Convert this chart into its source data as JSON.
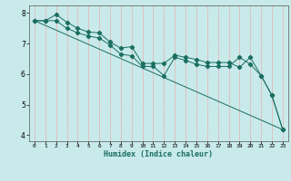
{
  "xlabel": "Humidex (Indice chaleur)",
  "bg_color": "#c8eaea",
  "grid_color_v": "#e8b0b0",
  "grid_color_h": "#c8e8e8",
  "line_color": "#1a6e60",
  "xlim": [
    -0.5,
    23.5
  ],
  "ylim": [
    3.8,
    8.25
  ],
  "yticks": [
    4,
    5,
    6,
    7,
    8
  ],
  "xticks": [
    0,
    1,
    2,
    3,
    4,
    5,
    6,
    7,
    8,
    9,
    10,
    11,
    12,
    13,
    14,
    15,
    16,
    17,
    18,
    19,
    20,
    21,
    22,
    23
  ],
  "series1_x": [
    0,
    1,
    2,
    3,
    4,
    5,
    6,
    7,
    8,
    9,
    10,
    11,
    12,
    13,
    14,
    15,
    16,
    17,
    18,
    19,
    20,
    21,
    22,
    23
  ],
  "series1_y": [
    7.75,
    7.75,
    7.95,
    7.7,
    7.5,
    7.38,
    7.35,
    7.05,
    6.85,
    6.9,
    6.35,
    6.35,
    6.35,
    6.62,
    6.55,
    6.48,
    6.38,
    6.38,
    6.38,
    6.22,
    6.55,
    5.95,
    5.3,
    4.18
  ],
  "series2_x": [
    0,
    1,
    2,
    3,
    4,
    5,
    6,
    7,
    8,
    9,
    10,
    11,
    12,
    13,
    14,
    15,
    16,
    17,
    18,
    19,
    20,
    21,
    22,
    23
  ],
  "series2_y": [
    7.75,
    7.75,
    7.75,
    7.5,
    7.35,
    7.25,
    7.18,
    6.95,
    6.65,
    6.6,
    6.25,
    6.25,
    5.95,
    6.55,
    6.45,
    6.32,
    6.25,
    6.25,
    6.25,
    6.55,
    6.32,
    5.95,
    5.3,
    4.18
  ],
  "series3_x": [
    0,
    23
  ],
  "series3_y": [
    7.75,
    4.18
  ]
}
